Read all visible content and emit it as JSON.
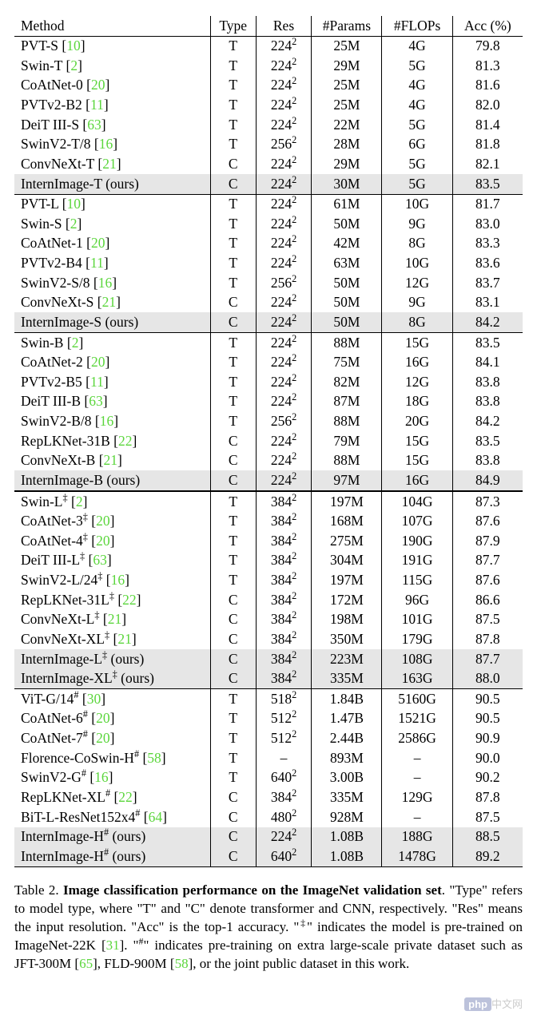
{
  "table": {
    "columns": [
      "Method",
      "Type",
      "Res",
      "#Params",
      "#FLOPs",
      "Acc (%)"
    ],
    "col_classes": [
      "col-method",
      "col-type",
      "col-res",
      "col-params",
      "col-flops",
      "col-acc"
    ],
    "rows": [
      {
        "m": "PVT-S",
        "r": "10",
        "t": "T",
        "res": "224",
        "p": "25M",
        "f": "4G",
        "a": "79.8",
        "cls": "sep"
      },
      {
        "m": "Swin-T",
        "r": "2",
        "t": "T",
        "res": "224",
        "p": "29M",
        "f": "5G",
        "a": "81.3"
      },
      {
        "m": "CoAtNet-0",
        "r": "20",
        "t": "T",
        "res": "224",
        "p": "25M",
        "f": "4G",
        "a": "81.6"
      },
      {
        "m": "PVTv2-B2",
        "r": "11",
        "t": "T",
        "res": "224",
        "p": "25M",
        "f": "4G",
        "a": "82.0"
      },
      {
        "m": "DeiT III-S",
        "r": "63",
        "t": "T",
        "res": "224",
        "p": "22M",
        "f": "5G",
        "a": "81.4"
      },
      {
        "m": "SwinV2-T/8",
        "r": "16",
        "t": "T",
        "res": "256",
        "p": "28M",
        "f": "6G",
        "a": "81.8"
      },
      {
        "m": "ConvNeXt-T",
        "r": "21",
        "t": "C",
        "res": "224",
        "p": "29M",
        "f": "5G",
        "a": "82.1"
      },
      {
        "m": "InternImage-T (ours)",
        "r": "",
        "t": "C",
        "res": "224",
        "p": "30M",
        "f": "5G",
        "a": "83.5",
        "cls": "hl"
      },
      {
        "m": "PVT-L",
        "r": "10",
        "t": "T",
        "res": "224",
        "p": "61M",
        "f": "10G",
        "a": "81.7",
        "cls": "sep"
      },
      {
        "m": "Swin-S",
        "r": "2",
        "t": "T",
        "res": "224",
        "p": "50M",
        "f": "9G",
        "a": "83.0"
      },
      {
        "m": "CoAtNet-1",
        "r": "20",
        "t": "T",
        "res": "224",
        "p": "42M",
        "f": "8G",
        "a": "83.3"
      },
      {
        "m": "PVTv2-B4",
        "r": "11",
        "t": "T",
        "res": "224",
        "p": "63M",
        "f": "10G",
        "a": "83.6"
      },
      {
        "m": "SwinV2-S/8",
        "r": "16",
        "t": "T",
        "res": "256",
        "p": "50M",
        "f": "12G",
        "a": "83.7"
      },
      {
        "m": "ConvNeXt-S",
        "r": "21",
        "t": "C",
        "res": "224",
        "p": "50M",
        "f": "9G",
        "a": "83.1"
      },
      {
        "m": "InternImage-S (ours)",
        "r": "",
        "t": "C",
        "res": "224",
        "p": "50M",
        "f": "8G",
        "a": "84.2",
        "cls": "hl"
      },
      {
        "m": "Swin-B",
        "r": "2",
        "t": "T",
        "res": "224",
        "p": "88M",
        "f": "15G",
        "a": "83.5",
        "cls": "sep"
      },
      {
        "m": "CoAtNet-2",
        "r": "20",
        "t": "T",
        "res": "224",
        "p": "75M",
        "f": "16G",
        "a": "84.1"
      },
      {
        "m": "PVTv2-B5",
        "r": "11",
        "t": "T",
        "res": "224",
        "p": "82M",
        "f": "12G",
        "a": "83.8"
      },
      {
        "m": "DeiT III-B",
        "r": "63",
        "t": "T",
        "res": "224",
        "p": "87M",
        "f": "18G",
        "a": "83.8"
      },
      {
        "m": "SwinV2-B/8",
        "r": "16",
        "t": "T",
        "res": "256",
        "p": "88M",
        "f": "20G",
        "a": "84.2"
      },
      {
        "m": "RepLKNet-31B",
        "r": "22",
        "t": "C",
        "res": "224",
        "p": "79M",
        "f": "15G",
        "a": "83.5"
      },
      {
        "m": "ConvNeXt-B",
        "r": "21",
        "t": "C",
        "res": "224",
        "p": "88M",
        "f": "15G",
        "a": "83.8"
      },
      {
        "m": "InternImage-B (ours)",
        "r": "",
        "t": "C",
        "res": "224",
        "p": "97M",
        "f": "16G",
        "a": "84.9",
        "cls": "hl botline"
      },
      {
        "m": "Swin-L",
        "sup": "‡",
        "r": "2",
        "t": "T",
        "res": "384",
        "p": "197M",
        "f": "104G",
        "a": "87.3",
        "cls": "thicktop"
      },
      {
        "m": "CoAtNet-3",
        "sup": "‡",
        "r": "20",
        "t": "T",
        "res": "384",
        "p": "168M",
        "f": "107G",
        "a": "87.6"
      },
      {
        "m": "CoAtNet-4",
        "sup": "‡",
        "r": "20",
        "t": "T",
        "res": "384",
        "p": "275M",
        "f": "190G",
        "a": "87.9"
      },
      {
        "m": "DeiT III-L",
        "sup": "‡",
        "r": "63",
        "t": "T",
        "res": "384",
        "p": "304M",
        "f": "191G",
        "a": "87.7"
      },
      {
        "m": "SwinV2-L/24",
        "sup": "‡",
        "r": "16",
        "t": "T",
        "res": "384",
        "p": "197M",
        "f": "115G",
        "a": "87.6"
      },
      {
        "m": "RepLKNet-31L",
        "sup": "‡",
        "r": "22",
        "t": "C",
        "res": "384",
        "p": "172M",
        "f": "96G",
        "a": "86.6"
      },
      {
        "m": "ConvNeXt-L",
        "sup": "‡",
        "r": "21",
        "t": "C",
        "res": "384",
        "p": "198M",
        "f": "101G",
        "a": "87.5"
      },
      {
        "m": "ConvNeXt-XL",
        "sup": "‡",
        "r": "21",
        "t": "C",
        "res": "384",
        "p": "350M",
        "f": "179G",
        "a": "87.8"
      },
      {
        "m": "InternImage-L",
        "sup": "‡",
        "after": " (ours)",
        "r": "",
        "t": "C",
        "res": "384",
        "p": "223M",
        "f": "108G",
        "a": "87.7",
        "cls": "hl"
      },
      {
        "m": "InternImage-XL",
        "sup": "‡",
        "after": " (ours)",
        "r": "",
        "t": "C",
        "res": "384",
        "p": "335M",
        "f": "163G",
        "a": "88.0",
        "cls": "hl"
      },
      {
        "m": "ViT-G/14",
        "sup": "#",
        "r": "30",
        "t": "T",
        "res": "518",
        "p": "1.84B",
        "f": "5160G",
        "a": "90.5",
        "cls": "sep"
      },
      {
        "m": "CoAtNet-6",
        "sup": "#",
        "r": "20",
        "t": "T",
        "res": "512",
        "p": "1.47B",
        "f": "1521G",
        "a": "90.5"
      },
      {
        "m": "CoAtNet-7",
        "sup": "#",
        "r": "20",
        "t": "T",
        "res": "512",
        "p": "2.44B",
        "f": "2586G",
        "a": "90.9"
      },
      {
        "m": "Florence-CoSwin-H",
        "sup": "#",
        "r": "58",
        "t": "T",
        "res": "–",
        "p": "893M",
        "f": "–",
        "a": "90.0",
        "nores": true
      },
      {
        "m": "SwinV2-G",
        "sup": "#",
        "r": "16",
        "t": "T",
        "res": "640",
        "p": "3.00B",
        "f": "–",
        "a": "90.2"
      },
      {
        "m": "RepLKNet-XL",
        "sup": "#",
        "r": "22",
        "t": "C",
        "res": "384",
        "p": "335M",
        "f": "129G",
        "a": "87.8"
      },
      {
        "m": "BiT-L-ResNet152x4",
        "sup": "#",
        "r": "64",
        "t": "C",
        "res": "480",
        "p": "928M",
        "f": "–",
        "a": "87.5"
      },
      {
        "m": "InternImage-H",
        "sup": "#",
        "after": " (ours)",
        "r": "",
        "t": "C",
        "res": "224",
        "p": "1.08B",
        "f": "188G",
        "a": "88.5",
        "cls": "hl"
      },
      {
        "m": "InternImage-H",
        "sup": "#",
        "after": " (ours)",
        "r": "",
        "t": "C",
        "res": "640",
        "p": "1.08B",
        "f": "1478G",
        "a": "89.2",
        "cls": "hl botline"
      }
    ]
  },
  "caption": {
    "label": "Table 2.",
    "title": "Image classification performance on the ImageNet validation set",
    "body1": ". \"Type\" refers to model type, where \"T\" and \"C\" denote transformer and CNN, respectively. \"Res\" means the input resolution. \"Acc\" is the top-1 accuracy. \"",
    "sup1": "‡",
    "body2": "\" indicates the model is pre-trained on ImageNet-22K [",
    "ref1": "31",
    "body3": "]. \"",
    "sup2": "#",
    "body4": "\" indicates pre-training on extra large-scale private dataset such as JFT-300M [",
    "ref2": "65",
    "body5": "], FLD-900M [",
    "ref3": "58",
    "body6": "], or the joint public dataset in this work."
  },
  "watermark": {
    "php": "php",
    "cn": "中文网"
  }
}
